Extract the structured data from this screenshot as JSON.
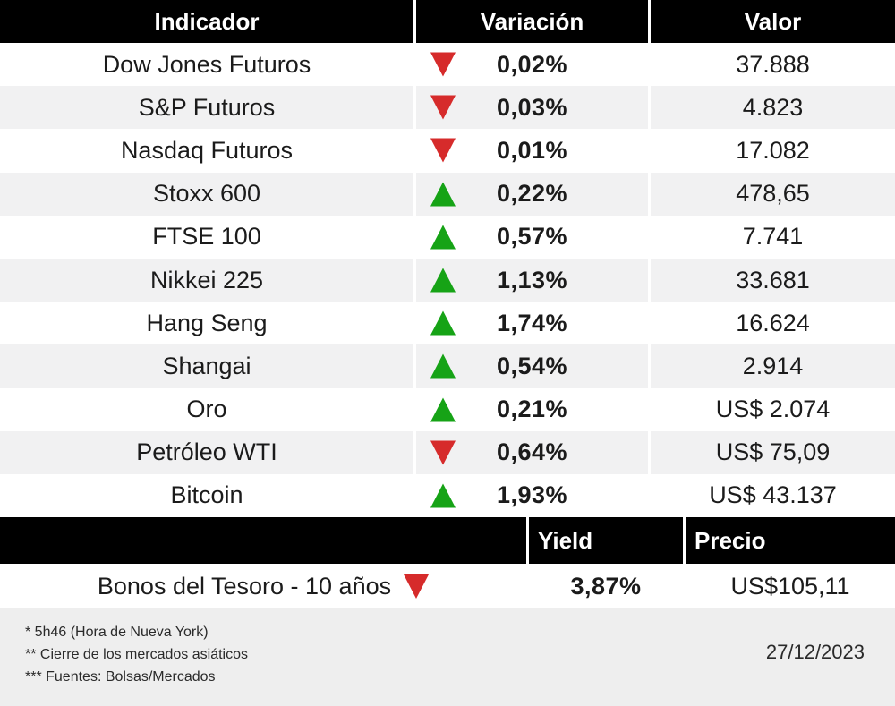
{
  "colors": {
    "up_green": "#16a316",
    "down_red": "#d62b2b",
    "header_bg": "#000000",
    "row_alt_bg": "#f1f1f2",
    "footer_bg": "#eeeeee"
  },
  "chart_data": [
    {
      "type": "table",
      "title": "Indicadores de mercado",
      "columns": [
        "Indicador",
        "Variación",
        "Valor"
      ],
      "rows": [
        {
          "indicator": "Dow Jones Futuros",
          "direction": "down",
          "variation_pct": -0.02,
          "variation_label": "0,02%",
          "value": 37888,
          "value_label": "37.888"
        },
        {
          "indicator": "S&P Futuros",
          "direction": "down",
          "variation_pct": -0.03,
          "variation_label": "0,03%",
          "value": 4823,
          "value_label": "4.823"
        },
        {
          "indicator": "Nasdaq Futuros",
          "direction": "down",
          "variation_pct": -0.01,
          "variation_label": "0,01%",
          "value": 17082,
          "value_label": "17.082"
        },
        {
          "indicator": "Stoxx 600",
          "direction": "up",
          "variation_pct": 0.22,
          "variation_label": "0,22%",
          "value": 478.65,
          "value_label": "478,65"
        },
        {
          "indicator": "FTSE 100",
          "direction": "up",
          "variation_pct": 0.57,
          "variation_label": "0,57%",
          "value": 7741,
          "value_label": "7.741"
        },
        {
          "indicator": "Nikkei 225",
          "direction": "up",
          "variation_pct": 1.13,
          "variation_label": "1,13%",
          "value": 33681,
          "value_label": "33.681"
        },
        {
          "indicator": "Hang Seng",
          "direction": "up",
          "variation_pct": 1.74,
          "variation_label": "1,74%",
          "value": 16624,
          "value_label": "16.624"
        },
        {
          "indicator": "Shangai",
          "direction": "up",
          "variation_pct": 0.54,
          "variation_label": "0,54%",
          "value": 2914,
          "value_label": "2.914"
        },
        {
          "indicator": "Oro",
          "direction": "up",
          "variation_pct": 0.21,
          "variation_label": "0,21%",
          "value": 2074,
          "value_label": "US$ 2.074"
        },
        {
          "indicator": "Petróleo WTI",
          "direction": "down",
          "variation_pct": -0.64,
          "variation_label": "0,64%",
          "value": 75.09,
          "value_label": "US$ 75,09"
        },
        {
          "indicator": "Bitcoin",
          "direction": "up",
          "variation_pct": 1.93,
          "variation_label": "1,93%",
          "value": 43137,
          "value_label": "US$ 43.137"
        }
      ]
    },
    {
      "type": "table",
      "title": "Bonos",
      "columns": [
        "",
        "Yield",
        "Precio"
      ],
      "rows": [
        {
          "indicator": "Bonos del Tesoro - 10 años",
          "direction": "down",
          "yield_pct": 3.87,
          "yield_label": "3,87%",
          "price": 105.11,
          "price_label": "US$105,11"
        }
      ]
    }
  ],
  "footer": {
    "notes": [
      "* 5h46 (Hora de Nueva York)",
      "** Cierre de los mercados asiáticos",
      "*** Fuentes:  Bolsas/Mercados"
    ],
    "date": "27/12/2023"
  }
}
